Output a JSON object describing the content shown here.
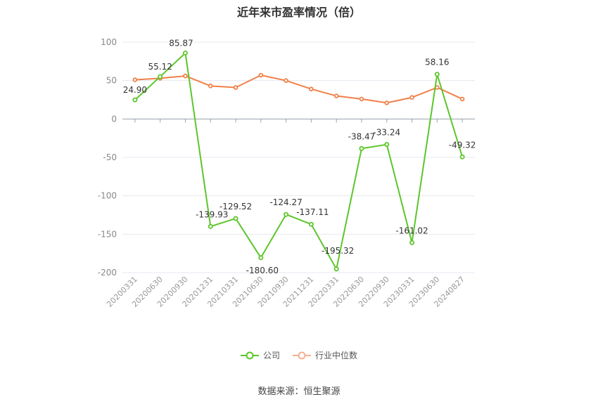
{
  "chart_data": {
    "type": "line",
    "title": "近年来市盈率情况（倍）",
    "categories": [
      "20200331",
      "20200630",
      "20200930",
      "20201231",
      "20210331",
      "20210630",
      "20210930",
      "20211231",
      "20220331",
      "20220630",
      "20220930",
      "20230331",
      "20230630",
      "20240827"
    ],
    "series": [
      {
        "name": "公司",
        "color": "#5cc62a",
        "values": [
          24.9,
          55.12,
          85.87,
          -139.93,
          -129.52,
          -180.6,
          -124.27,
          -137.11,
          -195.32,
          -38.47,
          -33.24,
          -161.02,
          58.16,
          -49.32
        ],
        "labels": [
          "24.90",
          "55.12",
          "85.87",
          "-139.93",
          "-129.52",
          "-180.60",
          "-124.27",
          "-137.11",
          "-195.32",
          "-38.47",
          "-33.24",
          "-161.02",
          "58.16",
          "-49.32"
        ]
      },
      {
        "name": "行业中位数",
        "color": "#f0804a",
        "values": [
          51,
          53,
          56,
          43,
          41,
          57,
          50,
          39,
          30,
          26,
          21,
          28,
          41,
          26
        ]
      }
    ],
    "yticks": [
      100,
      50,
      0,
      -50,
      -100,
      -150,
      -200
    ],
    "ylim": [
      -200,
      100
    ],
    "grid": true,
    "legend_position": "bottom"
  },
  "source_note": "数据来源：恒生聚源"
}
